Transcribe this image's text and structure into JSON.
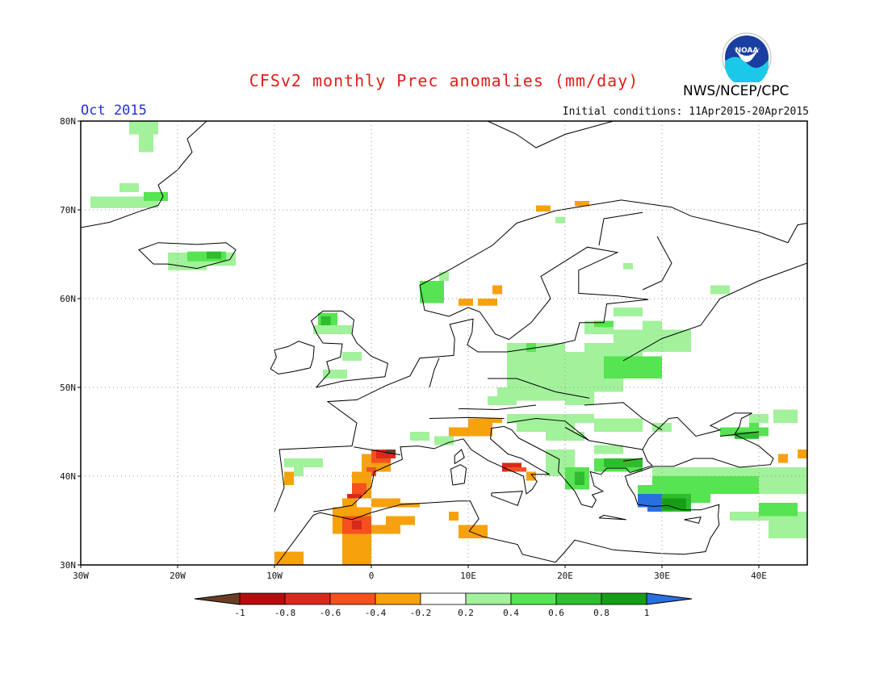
{
  "header": {
    "title": "CFSv2 monthly Prec anomalies (mm/day)",
    "agency": "NWS/NCEP/CPC",
    "month": "Oct 2015",
    "initial_conditions": "Initial conditions: 11Apr2015-20Apr2015"
  },
  "logo": {
    "text": "NOAA",
    "icon": "noaa-logo-icon"
  },
  "map": {
    "region": "Europe",
    "lon_range": [
      -30,
      45
    ],
    "lat_range": [
      30,
      80
    ],
    "lat_labels": [
      "80N",
      "70N",
      "60N",
      "50N",
      "40N",
      "30N"
    ],
    "lon_labels": [
      "30W",
      "20W",
      "10W",
      "0",
      "10E",
      "20E",
      "30E",
      "40E"
    ],
    "gridlines": true
  },
  "colorbar": {
    "labels": [
      "-1",
      "-0.8",
      "-0.6",
      "-0.4",
      "-0.2",
      "0.2",
      "0.4",
      "0.6",
      "0.8",
      "1"
    ],
    "colors": {
      "below_-1": "#6b3d25",
      "-1_-0.8": "#b40d0d",
      "-0.8_-0.6": "#d82a1a",
      "-0.6_-0.4": "#f5501e",
      "-0.4_-0.2": "#f7a10c",
      "-0.2_0.2": "#ffffff",
      "0.2_0.4": "#a2f19b",
      "0.4_0.6": "#57e452",
      "0.6_0.8": "#2fbd2f",
      "0.8_1": "#169e16",
      "above_1": "#2a6fe0"
    }
  }
}
